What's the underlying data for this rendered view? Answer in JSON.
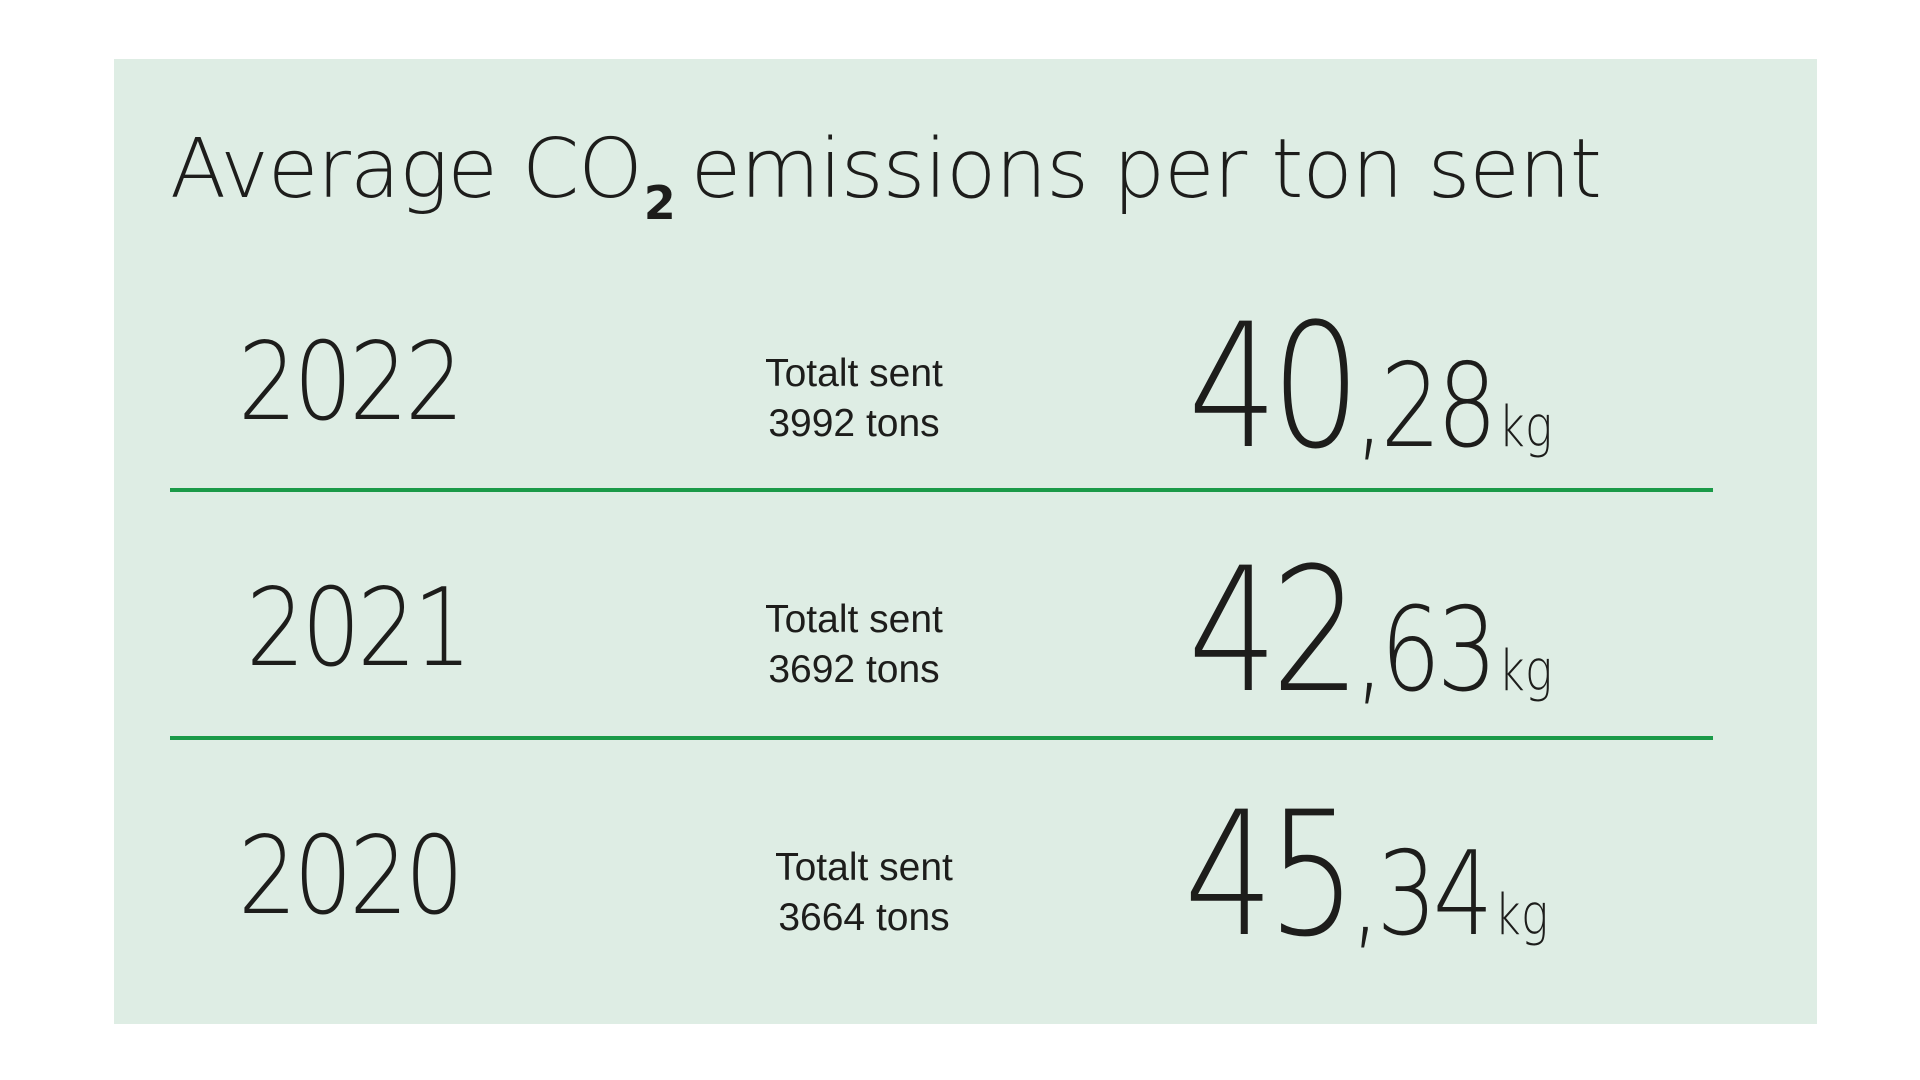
{
  "title": {
    "prefix": "Average CO",
    "subscript": "2",
    "suffix": "emissions per ton sent"
  },
  "rows": [
    {
      "year": "2022",
      "sent_label": "Totalt sent",
      "sent_value": "3992 tons",
      "value_int": "40",
      "value_dec": ",28",
      "unit": "kg"
    },
    {
      "year": "2021",
      "sent_label": "Totalt sent",
      "sent_value": "3692 tons",
      "value_int": "42",
      "value_dec": ",63",
      "unit": "kg"
    },
    {
      "year": "2020",
      "sent_label": "Totalt sent",
      "sent_value": "3664 tons",
      "value_int": "45",
      "value_dec": ",34",
      "unit": "kg"
    }
  ],
  "colors": {
    "background": "#deede4",
    "divider": "#1a9a48",
    "text": "#1d1d1b"
  }
}
